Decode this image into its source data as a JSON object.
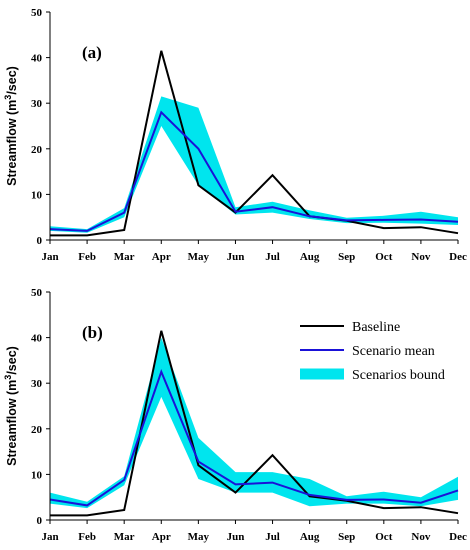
{
  "colors": {
    "baseline": "#000000",
    "scenario_mean": "#1a12d8",
    "bound": "#00e5ee"
  },
  "legend": {
    "baseline": "Baseline",
    "scenario_mean": "Scenario mean",
    "bound": "Scenarios bound"
  },
  "chart_data": [
    {
      "type": "line",
      "panel_label": "(a)",
      "ylabel": "Streamflow (m3/sec)",
      "ylabel_main": "Streamflow (m",
      "ylabel_sup": "3",
      "ylabel_tail": "/sec)",
      "categories": [
        "Jan",
        "Feb",
        "Mar",
        "Apr",
        "May",
        "Jun",
        "Jul",
        "Aug",
        "Sep",
        "Oct",
        "Nov",
        "Dec"
      ],
      "ylim": [
        0,
        50
      ],
      "yticks": [
        0,
        10,
        20,
        30,
        40,
        50
      ],
      "series": [
        {
          "name": "Baseline",
          "values": [
            1.0,
            1.0,
            2.2,
            41.5,
            12.0,
            6.0,
            14.2,
            5.2,
            4.2,
            2.6,
            2.8,
            1.5
          ]
        },
        {
          "name": "Scenario mean",
          "values": [
            2.4,
            2.0,
            6.0,
            28.0,
            20.0,
            6.2,
            7.2,
            5.2,
            4.3,
            4.4,
            4.5,
            4.0
          ]
        }
      ],
      "band": {
        "name": "Scenarios bound",
        "lower": [
          2.0,
          1.6,
          5.0,
          25.0,
          12.0,
          5.6,
          6.0,
          4.6,
          3.7,
          3.8,
          3.6,
          3.3
        ],
        "upper": [
          3.0,
          2.4,
          7.0,
          31.5,
          29.0,
          7.2,
          8.4,
          6.5,
          4.9,
          5.3,
          6.2,
          5.0
        ]
      }
    },
    {
      "type": "line",
      "panel_label": "(b)",
      "ylabel": "Streamflow (m3/sec)",
      "ylabel_main": "Streamflow (m",
      "ylabel_sup": "3",
      "ylabel_tail": "/sec)",
      "categories": [
        "Jan",
        "Feb",
        "Mar",
        "Apr",
        "May",
        "Jun",
        "Jul",
        "Aug",
        "Sep",
        "Oct",
        "Nov",
        "Dec"
      ],
      "ylim": [
        0,
        50
      ],
      "yticks": [
        0,
        10,
        20,
        30,
        40,
        50
      ],
      "series": [
        {
          "name": "Baseline",
          "values": [
            1.0,
            1.0,
            2.2,
            41.5,
            12.0,
            6.0,
            14.2,
            5.2,
            4.2,
            2.6,
            2.8,
            1.5
          ]
        },
        {
          "name": "Scenario mean",
          "values": [
            4.5,
            3.2,
            8.8,
            32.5,
            12.8,
            7.8,
            8.2,
            5.5,
            4.4,
            4.5,
            3.8,
            6.5
          ]
        }
      ],
      "band": {
        "name": "Scenarios bound",
        "lower": [
          3.6,
          2.6,
          7.6,
          27.0,
          9.0,
          6.0,
          6.0,
          3.0,
          3.6,
          3.6,
          3.0,
          4.4
        ],
        "upper": [
          6.0,
          4.0,
          9.6,
          40.0,
          18.0,
          10.5,
          10.5,
          9.0,
          5.2,
          6.2,
          5.0,
          9.5
        ]
      },
      "legend_position": "top-right"
    }
  ]
}
